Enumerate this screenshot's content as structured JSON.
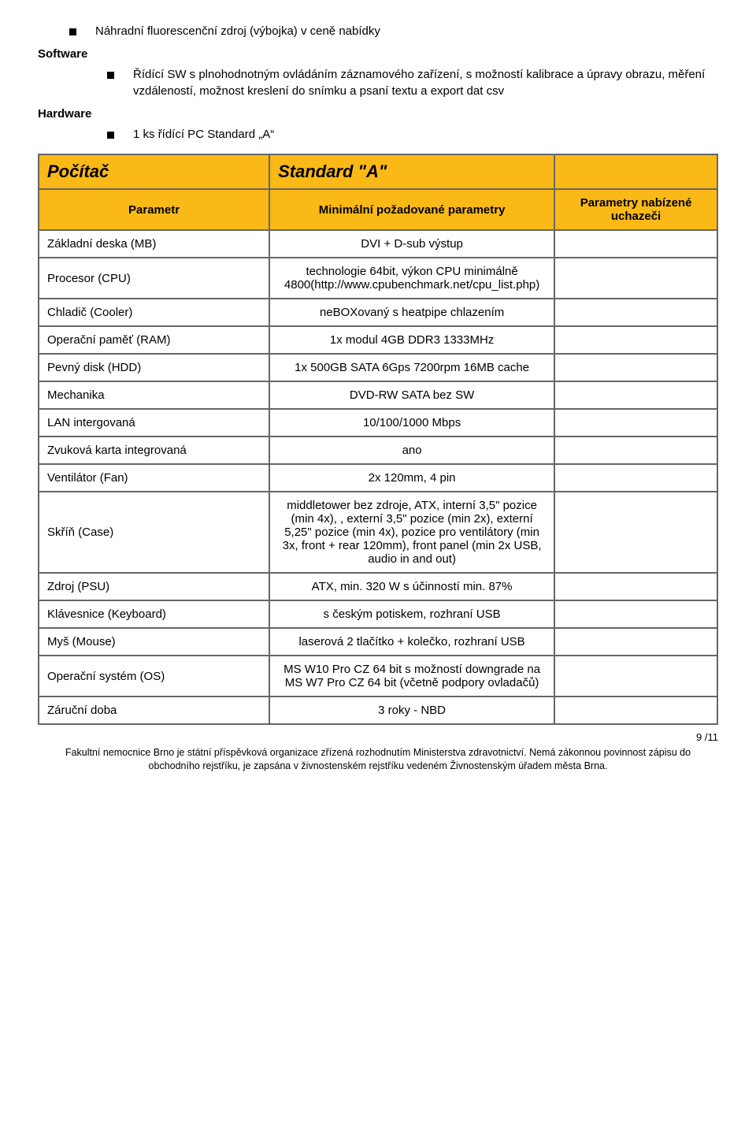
{
  "bullets": {
    "b1": "Náhradní fluorescenční zdroj (výbojka) v ceně nabídky",
    "h1": "Software",
    "b2": "Řídící SW s plnohodnotným ovládáním záznamového zařízení, s možností kalibrace a úpravy obrazu, měření vzdáleností, možnost kreslení do snímku a psaní textu a export dat csv",
    "h2": "Hardware",
    "b3": "1 ks řídící PC Standard „A“"
  },
  "table": {
    "header": {
      "c1": "Počítač",
      "c2": "Standard \"A\""
    },
    "sub": {
      "c1": "Parametr",
      "c2": "Minimální požadované parametry",
      "c3": "Parametry nabízené uchazeči"
    },
    "rows": [
      {
        "p": "Základní deska (MB)",
        "v": "DVI + D-sub výstup"
      },
      {
        "p": "Procesor (CPU)",
        "v": "technologie 64bit, výkon CPU minimálně 4800(http://www.cpubenchmark.net/cpu_list.php)"
      },
      {
        "p": "Chladič (Cooler)",
        "v": "neBOXovaný s heatpipe chlazením"
      },
      {
        "p": "Operační paměť (RAM)",
        "v": "1x modul 4GB DDR3 1333MHz"
      },
      {
        "p": "Pevný disk (HDD)",
        "v": "1x 500GB SATA 6Gps 7200rpm 16MB cache"
      },
      {
        "p": "Mechanika",
        "v": "DVD-RW SATA bez SW"
      },
      {
        "p": "LAN intergovaná",
        "v": "10/100/1000 Mbps"
      },
      {
        "p": "Zvuková karta integrovaná",
        "v": "ano"
      },
      {
        "p": "Ventilátor (Fan)",
        "v": "2x 120mm, 4 pin"
      },
      {
        "p": "Skříň (Case)",
        "v": "middletower bez zdroje, ATX, interní 3,5\" pozice (min 4x), , externí 3,5\" pozice (min 2x), externí 5,25\" pozice (min 4x), pozice pro ventilátory (min 3x, front + rear 120mm), front panel (min 2x USB, audio in and out)"
      },
      {
        "p": "Zdroj (PSU)",
        "v": "ATX, min. 320 W s účinností min. 87%"
      },
      {
        "p": "Klávesnice (Keyboard)",
        "v": "s českým potiskem, rozhraní USB"
      },
      {
        "p": "Myš (Mouse)",
        "v": "laserová 2 tlačítko + kolečko, rozhraní USB"
      },
      {
        "p": "Operační systém (OS)",
        "v": "MS W10 Pro CZ 64 bit s možností downgrade na MS W7 Pro CZ 64 bit (včetně podpory ovladačů)"
      },
      {
        "p": "Záruční doba",
        "v": "3 roky - NBD"
      }
    ]
  },
  "pagenum": "9 /11",
  "footer": "Fakultní nemocnice Brno je státní příspěvková organizace zřízená rozhodnutím Ministerstva zdravotnictví. Nemá zákonnou povinnost zápisu do obchodního rejstříku, je zapsána v živnostenském rejstříku vedeném Živnostenským úřadem města Brna."
}
